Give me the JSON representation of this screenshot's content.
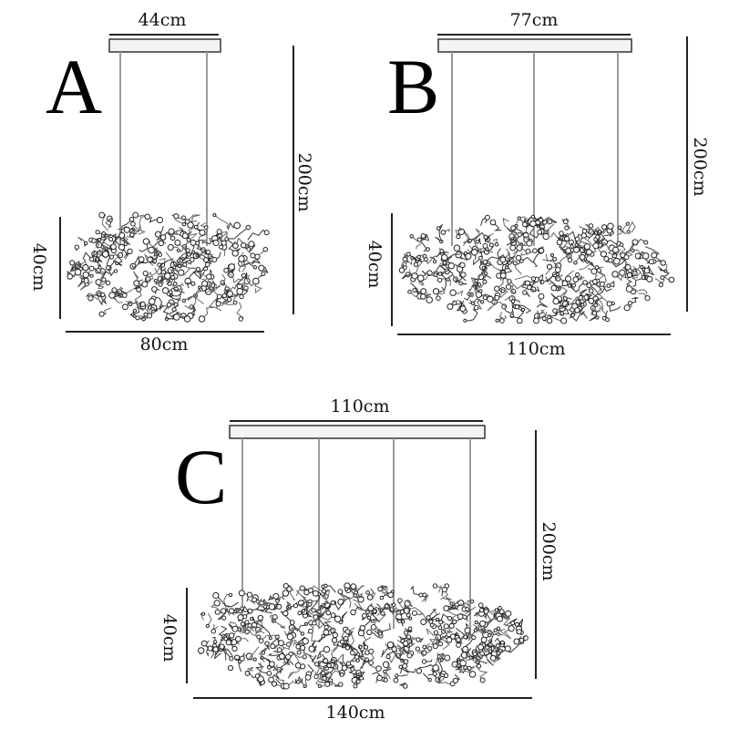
{
  "variants": [
    {
      "label": "A",
      "canopy_width": "44cm",
      "height": "200cm",
      "cluster_height": "40cm",
      "cluster_width": "80cm",
      "rods": 2
    },
    {
      "label": "B",
      "canopy_width": "77cm",
      "height": "200cm",
      "cluster_height": "40cm",
      "cluster_width": "110cm",
      "rods": 3
    },
    {
      "label": "C",
      "canopy_width": "110cm",
      "height": "200cm",
      "cluster_height": "40cm",
      "cluster_width": "140cm",
      "rods": 4
    }
  ]
}
